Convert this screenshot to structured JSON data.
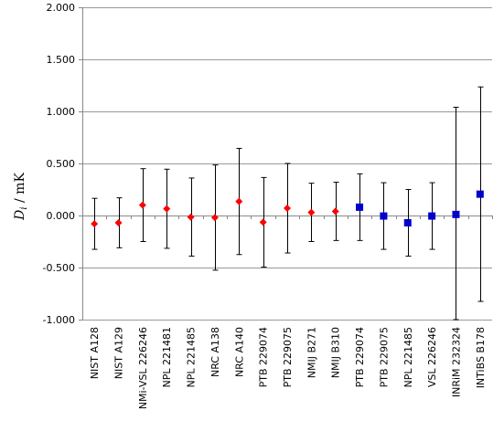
{
  "chart_data": {
    "type": "scatter",
    "ylabel": "D_i / mK",
    "ylabel_parts": {
      "symbol": "D",
      "subscript": "i",
      "unit": " / mK"
    },
    "ylim": [
      -1.0,
      2.0
    ],
    "yticks": [
      2.0,
      1.5,
      1.0,
      0.5,
      0.0,
      -0.5,
      -1.0
    ],
    "ytick_labels": [
      "2.000",
      "1.500",
      "1.000",
      "0.500",
      "0.000",
      "-0.500",
      "-1.000"
    ],
    "grid": true,
    "categories": [
      "NIST A128",
      "NIST A129",
      "NMi-VSL 226246",
      "NPL 221481",
      "NPL 221485",
      "NRC A138",
      "NRC A140",
      "PTB 229074",
      "PTB 229075",
      "NMIJ B271",
      "NMIJ B310",
      "PTB 229074",
      "PTB 229075",
      "NPL 221485",
      "VSL 226246",
      "INRiM 232324",
      "INTiBS B178"
    ],
    "values": [
      -0.08,
      -0.07,
      0.1,
      0.065,
      -0.015,
      -0.02,
      0.135,
      -0.065,
      0.07,
      0.03,
      0.04,
      0.08,
      -0.005,
      -0.07,
      -0.005,
      0.01,
      0.205
    ],
    "errors": [
      0.245,
      0.24,
      0.35,
      0.38,
      0.375,
      0.505,
      0.51,
      0.43,
      0.43,
      0.28,
      0.28,
      0.32,
      0.32,
      0.32,
      0.32,
      1.03,
      1.03
    ],
    "marker_shape": [
      "diamond",
      "diamond",
      "diamond",
      "diamond",
      "diamond",
      "diamond",
      "diamond",
      "diamond",
      "diamond",
      "diamond",
      "diamond",
      "square",
      "square",
      "square",
      "square",
      "square",
      "square"
    ],
    "colors": {
      "diamond": "#ff0000",
      "square": "#0000cc",
      "errorbar": "#000000",
      "grid": "#999999",
      "axis": "#888888"
    }
  }
}
